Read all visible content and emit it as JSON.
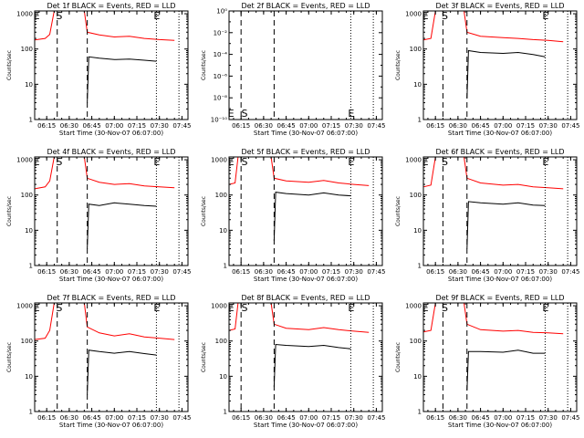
{
  "figure": {
    "background": "#ffffff",
    "axis_color": "#000000",
    "events_color": "#000000",
    "lld_color": "#ff0000"
  },
  "chart_data": [
    {
      "type": "line",
      "title": "Det 1f BLACK = Events, RED = LLD",
      "xlabel": "Start Time (30-Nov-07 06:07:00)",
      "ylabel": "Counts/sec",
      "x_ticks": [
        "06:15",
        "06:30",
        "06:45",
        "07:00",
        "07:15",
        "07:30",
        "07:45"
      ],
      "y_ticks": [
        "1",
        "10",
        "100",
        "1000"
      ],
      "y_scale": "log",
      "ylim": [
        1,
        1200
      ],
      "markers": [
        {
          "label": "E",
          "time": "06:08"
        },
        {
          "label": "S",
          "time": "06:23"
        },
        {
          "label": "E",
          "time": "07:28"
        }
      ],
      "dashed_lines": [
        "06:22",
        "06:42"
      ],
      "dotted_lines": [
        "07:28",
        "07:43"
      ],
      "series": [
        {
          "color": "#ff0000",
          "points": [
            [
              "06:07",
              180
            ],
            [
              "06:14",
              200
            ],
            [
              "06:17",
              260
            ],
            [
              "06:20",
              1200
            ],
            [
              "06:40",
              1200
            ],
            [
              "06:42",
              300
            ],
            [
              "06:50",
              250
            ],
            [
              "07:00",
              220
            ],
            [
              "07:10",
              230
            ],
            [
              "07:20",
              200
            ],
            [
              "07:30",
              185
            ],
            [
              "07:40",
              175
            ]
          ]
        },
        {
          "color": "#000000",
          "points": [
            [
              "06:42",
              3
            ],
            [
              "06:43",
              60
            ],
            [
              "06:50",
              55
            ],
            [
              "07:00",
              50
            ],
            [
              "07:10",
              52
            ],
            [
              "07:20",
              48
            ],
            [
              "07:28",
              45
            ]
          ]
        }
      ]
    },
    {
      "type": "line",
      "title": "Det 2f BLACK = Events, RED = LLD",
      "xlabel": "Start Time (30-Nov-07 06:07:00)",
      "ylabel": "Counts/sec",
      "x_ticks": [
        "06:15",
        "06:30",
        "06:45",
        "07:00",
        "07:15",
        "07:30",
        "07:45"
      ],
      "y_ticks": [
        "10⁻¹⁰",
        "10⁻⁸",
        "10⁻⁶",
        "10⁻⁴",
        "10⁻²",
        "10⁰"
      ],
      "y_scale": "log",
      "ylim": [
        1e-10,
        1
      ],
      "markers": [
        {
          "label": "E",
          "time": "06:08"
        },
        {
          "label": "S",
          "time": "06:17"
        },
        {
          "label": "E",
          "time": "07:28"
        }
      ],
      "dashed_lines": [
        "06:15",
        "06:37"
      ],
      "dotted_lines": [
        "07:28",
        "07:43"
      ],
      "series": []
    },
    {
      "type": "line",
      "title": "Det 3f BLACK = Events, RED = LLD",
      "xlabel": "Start Time (30-Nov-07 06:07:00)",
      "ylabel": "Counts/sec",
      "x_ticks": [
        "06:15",
        "06:30",
        "06:45",
        "07:00",
        "07:15",
        "07:30",
        "07:45"
      ],
      "y_ticks": [
        "1",
        "10",
        "100",
        "1000"
      ],
      "y_scale": "log",
      "ylim": [
        1,
        1200
      ],
      "markers": [
        {
          "label": "E",
          "time": "06:08"
        },
        {
          "label": "S",
          "time": "06:21"
        },
        {
          "label": "E",
          "time": "07:28"
        }
      ],
      "dashed_lines": [
        "06:20",
        "06:36"
      ],
      "dotted_lines": [
        "07:28",
        "07:43"
      ],
      "series": [
        {
          "color": "#ff0000",
          "points": [
            [
              "06:07",
              180
            ],
            [
              "06:12",
              200
            ],
            [
              "06:15",
              1200
            ],
            [
              "06:34",
              1200
            ],
            [
              "06:36",
              300
            ],
            [
              "06:45",
              230
            ],
            [
              "07:00",
              210
            ],
            [
              "07:10",
              200
            ],
            [
              "07:20",
              185
            ],
            [
              "07:30",
              175
            ],
            [
              "07:40",
              160
            ]
          ]
        },
        {
          "color": "#000000",
          "points": [
            [
              "06:36",
              4
            ],
            [
              "06:37",
              90
            ],
            [
              "06:45",
              80
            ],
            [
              "07:00",
              75
            ],
            [
              "07:10",
              80
            ],
            [
              "07:20",
              70
            ],
            [
              "07:28",
              60
            ]
          ]
        }
      ]
    },
    {
      "type": "line",
      "title": "Det 4f BLACK = Events, RED = LLD",
      "xlabel": "Start Time (30-Nov-07 06:07:00)",
      "ylabel": "Counts/sec",
      "x_ticks": [
        "06:15",
        "06:30",
        "06:45",
        "07:00",
        "07:15",
        "07:30",
        "07:45"
      ],
      "y_ticks": [
        "1",
        "10",
        "100",
        "1000"
      ],
      "y_scale": "log",
      "ylim": [
        1,
        1200
      ],
      "markers": [
        {
          "label": "E",
          "time": "06:08"
        },
        {
          "label": "S",
          "time": "06:23"
        },
        {
          "label": "E",
          "time": "07:28"
        }
      ],
      "dashed_lines": [
        "06:22",
        "06:42"
      ],
      "dotted_lines": [
        "07:28",
        "07:43"
      ],
      "series": [
        {
          "color": "#ff0000",
          "points": [
            [
              "06:07",
              150
            ],
            [
              "06:14",
              170
            ],
            [
              "06:17",
              250
            ],
            [
              "06:20",
              1200
            ],
            [
              "06:40",
              1200
            ],
            [
              "06:42",
              300
            ],
            [
              "06:50",
              230
            ],
            [
              "07:00",
              200
            ],
            [
              "07:10",
              210
            ],
            [
              "07:20",
              180
            ],
            [
              "07:30",
              170
            ],
            [
              "07:40",
              160
            ]
          ]
        },
        {
          "color": "#000000",
          "points": [
            [
              "06:42",
              3
            ],
            [
              "06:43",
              55
            ],
            [
              "06:50",
              50
            ],
            [
              "07:00",
              60
            ],
            [
              "07:10",
              55
            ],
            [
              "07:20",
              50
            ],
            [
              "07:28",
              48
            ]
          ]
        }
      ]
    },
    {
      "type": "line",
      "title": "Det 5f BLACK = Events, RED = LLD",
      "xlabel": "Start Time (30-Nov-07 06:07:00)",
      "ylabel": "Counts/sec",
      "x_ticks": [
        "06:15",
        "06:30",
        "06:45",
        "07:00",
        "07:15",
        "07:30",
        "07:45"
      ],
      "y_ticks": [
        "1",
        "10",
        "100",
        "1000"
      ],
      "y_scale": "log",
      "ylim": [
        1,
        1200
      ],
      "markers": [
        {
          "label": "E",
          "time": "06:08"
        },
        {
          "label": "S",
          "time": "06:17"
        },
        {
          "label": "E",
          "time": "07:28"
        }
      ],
      "dashed_lines": [
        "06:15",
        "06:37"
      ],
      "dotted_lines": [
        "07:28",
        "07:43"
      ],
      "series": [
        {
          "color": "#ff0000",
          "points": [
            [
              "06:07",
              200
            ],
            [
              "06:11",
              220
            ],
            [
              "06:13",
              1200
            ],
            [
              "06:35",
              1200
            ],
            [
              "06:37",
              300
            ],
            [
              "06:45",
              250
            ],
            [
              "07:00",
              230
            ],
            [
              "07:10",
              260
            ],
            [
              "07:20",
              220
            ],
            [
              "07:30",
              200
            ],
            [
              "07:40",
              185
            ]
          ]
        },
        {
          "color": "#000000",
          "points": [
            [
              "06:37",
              5
            ],
            [
              "06:38",
              120
            ],
            [
              "06:45",
              110
            ],
            [
              "07:00",
              100
            ],
            [
              "07:10",
              115
            ],
            [
              "07:20",
              100
            ],
            [
              "07:28",
              95
            ]
          ]
        }
      ]
    },
    {
      "type": "line",
      "title": "Det 6f BLACK = Events, RED = LLD",
      "xlabel": "Start Time (30-Nov-07 06:07:00)",
      "ylabel": "Counts/sec",
      "x_ticks": [
        "06:15",
        "06:30",
        "06:45",
        "07:00",
        "07:15",
        "07:30",
        "07:45"
      ],
      "y_ticks": [
        "1",
        "10",
        "100",
        "1000"
      ],
      "y_scale": "log",
      "ylim": [
        1,
        1200
      ],
      "markers": [
        {
          "label": "E",
          "time": "06:08"
        },
        {
          "label": "S",
          "time": "06:21"
        },
        {
          "label": "E",
          "time": "07:28"
        }
      ],
      "dashed_lines": [
        "06:20",
        "06:36"
      ],
      "dotted_lines": [
        "07:28",
        "07:43"
      ],
      "series": [
        {
          "color": "#ff0000",
          "points": [
            [
              "06:07",
              170
            ],
            [
              "06:12",
              190
            ],
            [
              "06:15",
              1200
            ],
            [
              "06:34",
              1200
            ],
            [
              "06:36",
              300
            ],
            [
              "06:45",
              220
            ],
            [
              "07:00",
              190
            ],
            [
              "07:10",
              200
            ],
            [
              "07:20",
              170
            ],
            [
              "07:30",
              160
            ],
            [
              "07:40",
              150
            ]
          ]
        },
        {
          "color": "#000000",
          "points": [
            [
              "06:36",
              3
            ],
            [
              "06:37",
              65
            ],
            [
              "06:45",
              60
            ],
            [
              "07:00",
              55
            ],
            [
              "07:10",
              60
            ],
            [
              "07:20",
              52
            ],
            [
              "07:28",
              50
            ]
          ]
        }
      ]
    },
    {
      "type": "line",
      "title": "Det 7f BLACK = Events, RED = LLD",
      "xlabel": "Start Time (30-Nov-07 06:07:00)",
      "ylabel": "Counts/sec",
      "x_ticks": [
        "06:15",
        "06:30",
        "06:45",
        "07:00",
        "07:15",
        "07:30",
        "07:45"
      ],
      "y_ticks": [
        "1",
        "10",
        "100",
        "1000"
      ],
      "y_scale": "log",
      "ylim": [
        1,
        1200
      ],
      "markers": [
        {
          "label": "E",
          "time": "06:08"
        },
        {
          "label": "S",
          "time": "06:23"
        },
        {
          "label": "E",
          "time": "07:28"
        }
      ],
      "dashed_lines": [
        "06:22",
        "06:42"
      ],
      "dotted_lines": [
        "07:28",
        "07:43"
      ],
      "series": [
        {
          "color": "#ff0000",
          "points": [
            [
              "06:07",
              110
            ],
            [
              "06:14",
              120
            ],
            [
              "06:17",
              200
            ],
            [
              "06:20",
              1200
            ],
            [
              "06:40",
              1200
            ],
            [
              "06:42",
              250
            ],
            [
              "06:50",
              170
            ],
            [
              "07:00",
              140
            ],
            [
              "07:10",
              160
            ],
            [
              "07:20",
              130
            ],
            [
              "07:30",
              120
            ],
            [
              "07:40",
              110
            ]
          ]
        },
        {
          "color": "#000000",
          "points": [
            [
              "06:42",
              3
            ],
            [
              "06:43",
              55
            ],
            [
              "06:50",
              50
            ],
            [
              "07:00",
              45
            ],
            [
              "07:10",
              50
            ],
            [
              "07:20",
              44
            ],
            [
              "07:28",
              40
            ]
          ]
        }
      ]
    },
    {
      "type": "line",
      "title": "Det 8f BLACK = Events, RED = LLD",
      "xlabel": "Start Time (30-Nov-07 06:07:00)",
      "ylabel": "Counts/sec",
      "x_ticks": [
        "06:15",
        "06:30",
        "06:45",
        "07:00",
        "07:15",
        "07:30",
        "07:45"
      ],
      "y_ticks": [
        "1",
        "10",
        "100",
        "1000"
      ],
      "y_scale": "log",
      "ylim": [
        1,
        1200
      ],
      "markers": [
        {
          "label": "E",
          "time": "06:08"
        },
        {
          "label": "S",
          "time": "06:17"
        },
        {
          "label": "E",
          "time": "07:28"
        }
      ],
      "dashed_lines": [
        "06:15",
        "06:37"
      ],
      "dotted_lines": [
        "07:28",
        "07:43"
      ],
      "series": [
        {
          "color": "#ff0000",
          "points": [
            [
              "06:07",
              200
            ],
            [
              "06:11",
              220
            ],
            [
              "06:13",
              1200
            ],
            [
              "06:35",
              1200
            ],
            [
              "06:37",
              300
            ],
            [
              "06:45",
              230
            ],
            [
              "07:00",
              210
            ],
            [
              "07:10",
              240
            ],
            [
              "07:20",
              210
            ],
            [
              "07:30",
              190
            ],
            [
              "07:40",
              175
            ]
          ]
        },
        {
          "color": "#000000",
          "points": [
            [
              "06:37",
              5
            ],
            [
              "06:38",
              80
            ],
            [
              "06:45",
              75
            ],
            [
              "07:00",
              70
            ],
            [
              "07:10",
              75
            ],
            [
              "07:20",
              65
            ],
            [
              "07:28",
              60
            ]
          ]
        }
      ]
    },
    {
      "type": "line",
      "title": "Det 9f BLACK = Events, RED = LLD",
      "xlabel": "Start Time (30-Nov-07 06:07:00)",
      "ylabel": "Counts/sec",
      "x_ticks": [
        "06:15",
        "06:30",
        "06:45",
        "07:00",
        "07:15",
        "07:30",
        "07:45"
      ],
      "y_ticks": [
        "1",
        "10",
        "100",
        "1000"
      ],
      "y_scale": "log",
      "ylim": [
        1,
        1200
      ],
      "markers": [
        {
          "label": "E",
          "time": "06:08"
        },
        {
          "label": "S",
          "time": "06:21"
        },
        {
          "label": "E",
          "time": "07:28"
        }
      ],
      "dashed_lines": [
        "06:20",
        "06:36"
      ],
      "dotted_lines": [
        "07:28",
        "07:43"
      ],
      "series": [
        {
          "color": "#ff0000",
          "points": [
            [
              "06:07",
              180
            ],
            [
              "06:12",
              200
            ],
            [
              "06:15",
              1200
            ],
            [
              "06:34",
              1200
            ],
            [
              "06:36",
              300
            ],
            [
              "06:45",
              210
            ],
            [
              "07:00",
              190
            ],
            [
              "07:10",
              200
            ],
            [
              "07:20",
              175
            ],
            [
              "07:30",
              170
            ],
            [
              "07:40",
              160
            ]
          ]
        },
        {
          "color": "#000000",
          "points": [
            [
              "06:36",
              4
            ],
            [
              "06:37",
              50
            ],
            [
              "06:45",
              50
            ],
            [
              "07:00",
              48
            ],
            [
              "07:10",
              55
            ],
            [
              "07:20",
              45
            ],
            [
              "07:28",
              45
            ]
          ]
        }
      ]
    }
  ]
}
